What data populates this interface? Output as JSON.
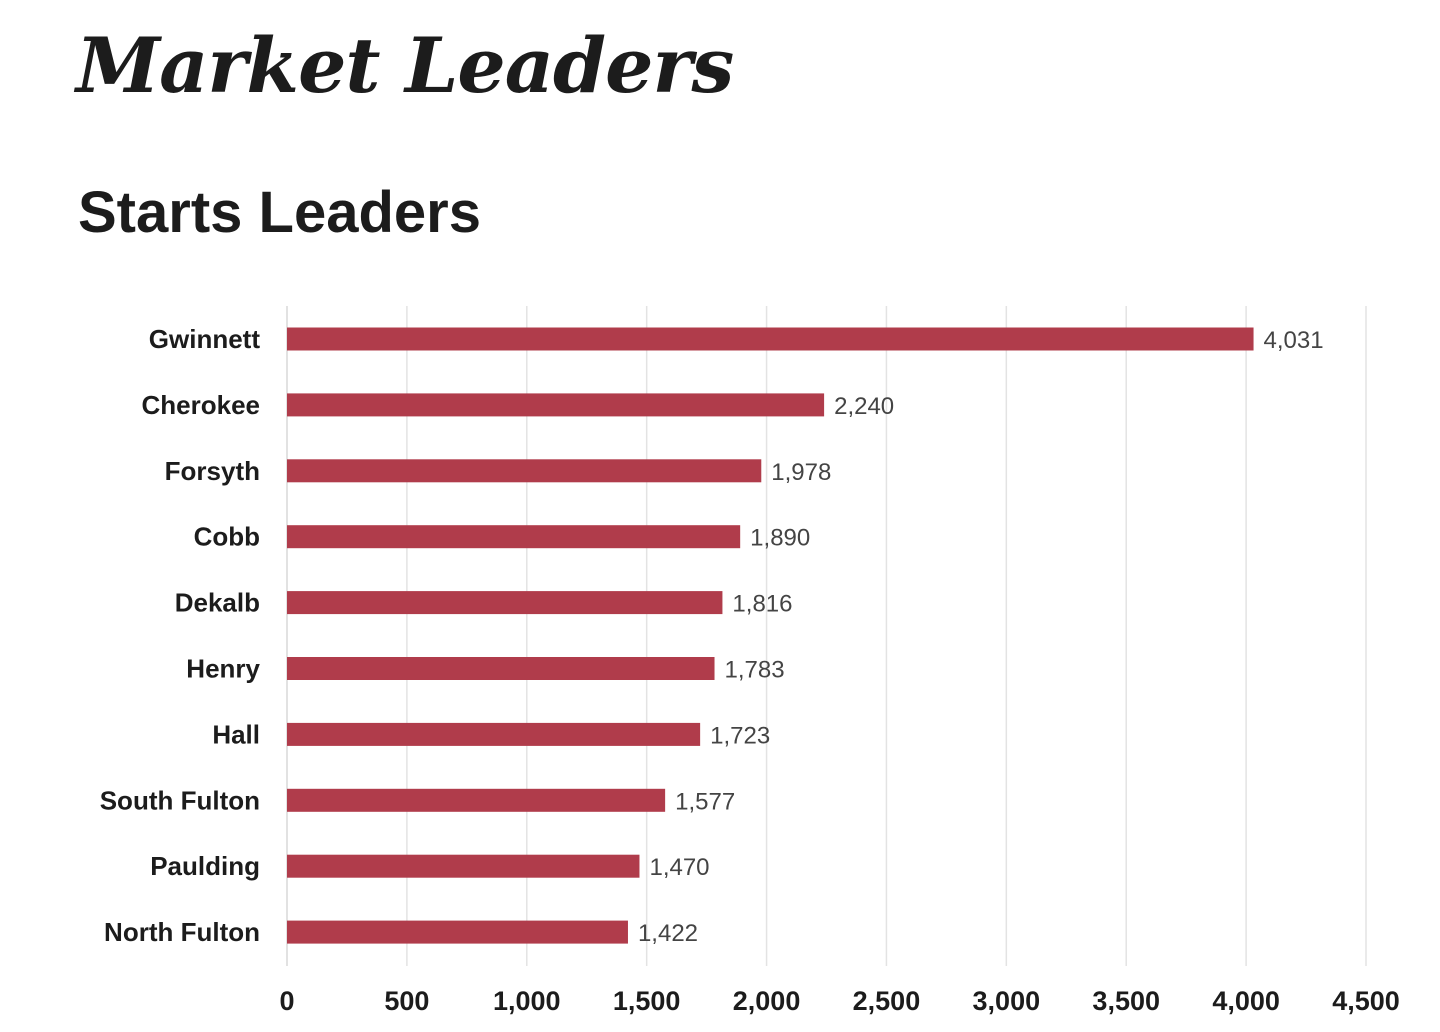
{
  "page": {
    "title": "Market Leaders",
    "section_title": "Starts Leaders"
  },
  "colors": {
    "bar": "#b03c4b",
    "grid": "#e3e3e3",
    "text": "#1c1c1c",
    "value_text": "#444444"
  },
  "chart_data": {
    "type": "bar",
    "orientation": "horizontal",
    "title": "Starts Leaders",
    "categories": [
      "Gwinnett",
      "Cherokee",
      "Forsyth",
      "Cobb",
      "Dekalb",
      "Henry",
      "Hall",
      "South Fulton",
      "Paulding",
      "North Fulton"
    ],
    "values": [
      4031,
      2240,
      1978,
      1890,
      1816,
      1783,
      1723,
      1577,
      1470,
      1422
    ],
    "value_labels": [
      "4,031",
      "2,240",
      "1,978",
      "1,890",
      "1,816",
      "1,783",
      "1,723",
      "1,577",
      "1,470",
      "1,422"
    ],
    "xlim": [
      0,
      4500
    ],
    "xticks": [
      0,
      500,
      1000,
      1500,
      2000,
      2500,
      3000,
      3500,
      4000,
      4500
    ],
    "xtick_labels": [
      "0",
      "500",
      "1,000",
      "1,500",
      "2,000",
      "2,500",
      "3,000",
      "3,500",
      "4,000",
      "4,500"
    ],
    "grid": "vertical",
    "legend": "none"
  }
}
